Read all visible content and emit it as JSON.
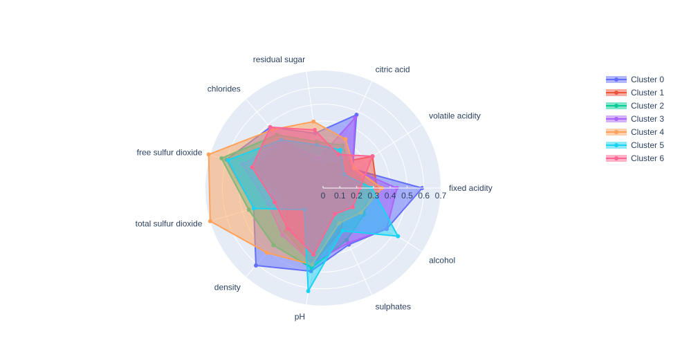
{
  "chart_data": {
    "type": "radar",
    "axes": [
      "fixed acidity",
      "volatile acidity",
      "citric acid",
      "residual sugar",
      "chlorides",
      "free sulfur dioxide",
      "total sulfur dioxide",
      "density",
      "pH",
      "sulphates",
      "alcohol"
    ],
    "radial_range": [
      0,
      0.7
    ],
    "radial_ticks": [
      "0",
      "0.1",
      "0.2",
      "0.3",
      "0.4",
      "0.5",
      "0.6",
      "0.7"
    ],
    "grid": true,
    "legend_position": "top-right",
    "series": [
      {
        "name": "Cluster 0",
        "color": "#636efa",
        "values": [
          0.59,
          0.21,
          0.48,
          0.33,
          0.48,
          0.6,
          0.43,
          0.61,
          0.5,
          0.37,
          0.45
        ]
      },
      {
        "name": "Cluster 1",
        "color": "#ef553b",
        "values": [
          0.32,
          0.35,
          0.16,
          0.13,
          0.34,
          0.42,
          0.22,
          0.34,
          0.46,
          0.27,
          0.15
        ]
      },
      {
        "name": "Cluster 2",
        "color": "#00cc96",
        "values": [
          0.28,
          0.2,
          0.28,
          0.28,
          0.42,
          0.63,
          0.46,
          0.45,
          0.48,
          0.34,
          0.29
        ]
      },
      {
        "name": "Cluster 3",
        "color": "#ab63fa",
        "values": [
          0.44,
          0.21,
          0.46,
          0.18,
          0.37,
          0.5,
          0.34,
          0.37,
          0.45,
          0.36,
          0.45
        ]
      },
      {
        "name": "Cluster 4",
        "color": "#ffa15a",
        "values": [
          0.35,
          0.22,
          0.32,
          0.4,
          0.46,
          0.71,
          0.7,
          0.51,
          0.46,
          0.23,
          0.27
        ]
      },
      {
        "name": "Cluster 5",
        "color": "#19d3f3",
        "values": [
          0.29,
          0.15,
          0.25,
          0.26,
          0.38,
          0.59,
          0.43,
          0.17,
          0.62,
          0.28,
          0.53
        ]
      },
      {
        "name": "Cluster 6",
        "color": "#ff6692",
        "values": [
          0.22,
          0.35,
          0.22,
          0.35,
          0.48,
          0.44,
          0.3,
          0.32,
          0.4,
          0.17,
          0.21
        ]
      }
    ]
  }
}
